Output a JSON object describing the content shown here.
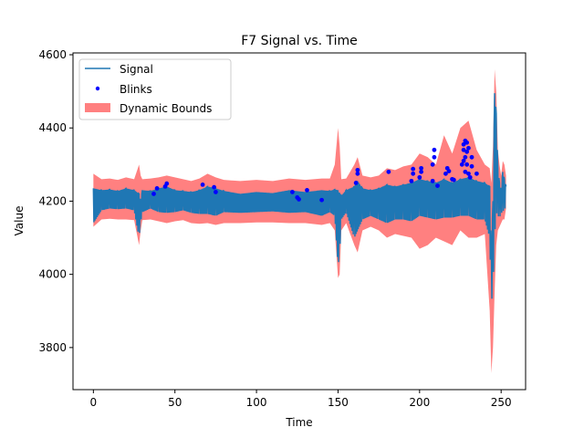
{
  "chart_data": {
    "type": "line",
    "title": "F7 Signal vs. Time",
    "xlabel": "Time",
    "ylabel": "Value",
    "xlim": [
      -12.5,
      265
    ],
    "ylim": [
      3685,
      4605
    ],
    "xticks": [
      0,
      50,
      100,
      150,
      200,
      250
    ],
    "yticks": [
      3800,
      4000,
      4200,
      4400,
      4600
    ],
    "grid": false,
    "legend_position": "upper-left",
    "colors": {
      "signal": "#1f77b4",
      "blinks": "#0000ff",
      "bounds": "#ff8080"
    },
    "series": [
      {
        "name": "Signal",
        "kind": "line",
        "x": [
          0,
          5,
          10,
          15,
          20,
          25,
          28,
          29,
          30,
          35,
          40,
          45,
          50,
          55,
          60,
          65,
          70,
          75,
          80,
          90,
          100,
          110,
          120,
          130,
          140,
          145,
          148,
          150,
          151,
          152,
          155,
          160,
          162,
          165,
          170,
          175,
          180,
          185,
          190,
          195,
          200,
          205,
          210,
          215,
          220,
          225,
          230,
          235,
          240,
          243,
          244,
          245,
          246,
          247,
          248,
          249,
          250,
          251,
          252,
          253
        ],
        "y_high": [
          4235,
          4230,
          4232,
          4228,
          4235,
          4230,
          4220,
          4200,
          4230,
          4228,
          4235,
          4240,
          4230,
          4228,
          4225,
          4230,
          4240,
          4235,
          4228,
          4220,
          4225,
          4222,
          4230,
          4225,
          4230,
          4228,
          4232,
          4230,
          4220,
          4215,
          4230,
          4240,
          4255,
          4235,
          4230,
          4235,
          4245,
          4240,
          4245,
          4250,
          4260,
          4255,
          4250,
          4260,
          4250,
          4260,
          4265,
          4255,
          4250,
          4240,
          4060,
          4200,
          4495,
          4440,
          4290,
          4250,
          4230,
          4280,
          4260,
          4240
        ],
        "y_low": [
          4140,
          4175,
          4180,
          4178,
          4180,
          4175,
          4100,
          4140,
          4170,
          4180,
          4170,
          4168,
          4170,
          4175,
          4168,
          4165,
          4165,
          4160,
          4170,
          4168,
          4170,
          4172,
          4168,
          4170,
          4160,
          4170,
          4160,
          4025,
          4050,
          4150,
          4170,
          4100,
          4120,
          4150,
          4160,
          4150,
          4140,
          4150,
          4150,
          4145,
          4160,
          4155,
          4150,
          4155,
          4155,
          4160,
          4160,
          4150,
          4150,
          4100,
          3920,
          3960,
          4100,
          4170,
          4160,
          4155,
          4165,
          4175,
          4170,
          4200
        ]
      },
      {
        "name": "Blinks",
        "kind": "scatter",
        "x": [
          37,
          39,
          44,
          45,
          67,
          74,
          75,
          122,
          125,
          126,
          131,
          140,
          161,
          162,
          162,
          181,
          195,
          196,
          196,
          200,
          201,
          201,
          208,
          208,
          209,
          209,
          211,
          216,
          217,
          218,
          220,
          221,
          226,
          227,
          227,
          227,
          228,
          228,
          228,
          229,
          229,
          229,
          230,
          230,
          231,
          232,
          232,
          235
        ],
        "y": [
          4220,
          4235,
          4240,
          4248,
          4245,
          4238,
          4225,
          4225,
          4210,
          4205,
          4230,
          4203,
          4250,
          4275,
          4285,
          4280,
          4255,
          4275,
          4288,
          4265,
          4280,
          4290,
          4255,
          4300,
          4320,
          4340,
          4242,
          4275,
          4290,
          4282,
          4260,
          4258,
          4300,
          4310,
          4340,
          4355,
          4320,
          4365,
          4280,
          4300,
          4335,
          4360,
          4275,
          4345,
          4265,
          4295,
          4320,
          4275
        ]
      },
      {
        "name": "Dynamic Bounds",
        "kind": "band",
        "x": [
          0,
          5,
          10,
          15,
          20,
          25,
          28,
          29,
          30,
          35,
          40,
          45,
          50,
          55,
          60,
          65,
          70,
          75,
          80,
          90,
          100,
          110,
          120,
          130,
          140,
          145,
          148,
          150,
          151,
          152,
          155,
          160,
          162,
          165,
          170,
          175,
          180,
          185,
          190,
          195,
          200,
          205,
          210,
          215,
          220,
          225,
          230,
          235,
          240,
          243,
          244,
          245,
          246,
          247,
          248,
          249,
          250,
          251,
          252,
          253
        ],
        "upper": [
          4275,
          4260,
          4262,
          4258,
          4265,
          4260,
          4300,
          4270,
          4260,
          4262,
          4265,
          4270,
          4265,
          4260,
          4255,
          4262,
          4275,
          4265,
          4258,
          4255,
          4258,
          4255,
          4262,
          4258,
          4262,
          4262,
          4300,
          4400,
          4350,
          4260,
          4262,
          4300,
          4320,
          4270,
          4265,
          4270,
          4290,
          4285,
          4295,
          4300,
          4330,
          4320,
          4300,
          4380,
          4330,
          4400,
          4420,
          4340,
          4300,
          4290,
          4250,
          4350,
          4560,
          4500,
          4340,
          4300,
          4270,
          4310,
          4300,
          4270
        ],
        "lower": [
          4130,
          4150,
          4152,
          4150,
          4150,
          4148,
          4080,
          4120,
          4148,
          4150,
          4145,
          4140,
          4145,
          4148,
          4140,
          4138,
          4140,
          4135,
          4140,
          4140,
          4142,
          4142,
          4140,
          4140,
          4135,
          4140,
          4120,
          3990,
          4000,
          4120,
          4140,
          4080,
          4060,
          4120,
          4130,
          4120,
          4100,
          4110,
          4105,
          4100,
          4070,
          4080,
          4100,
          4090,
          4080,
          4120,
          4100,
          4100,
          4110,
          3900,
          3730,
          3800,
          3950,
          4080,
          4120,
          4130,
          4140,
          4150,
          4150,
          4180
        ]
      }
    ],
    "legend": {
      "signal_label": "Signal",
      "blinks_label": "Blinks",
      "bounds_label": "Dynamic Bounds"
    }
  }
}
